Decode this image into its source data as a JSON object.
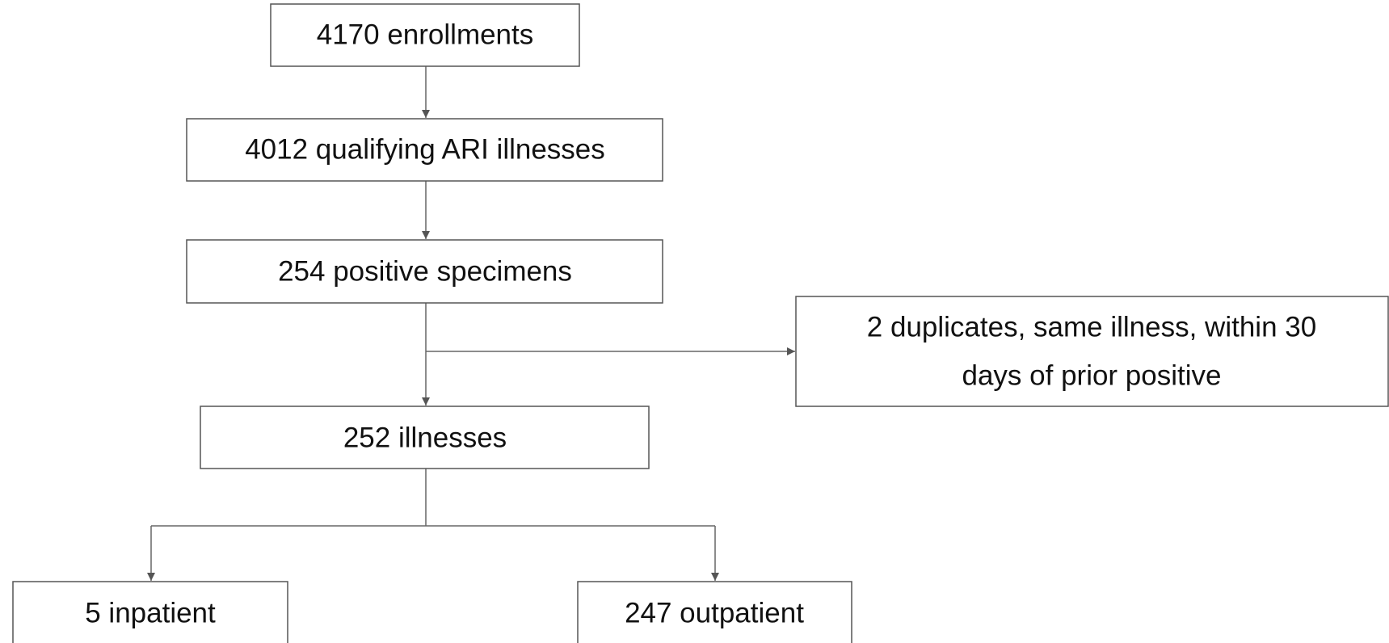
{
  "nodes": [
    {
      "label": "4170 enrollments"
    },
    {
      "label": "4012 qualifying ARI illnesses"
    },
    {
      "label": "254 positive specimens"
    },
    {
      "lines": [
        "2 duplicates, same illness, within 30",
        "days of prior positive"
      ]
    },
    {
      "label": "252 illnesses"
    },
    {
      "label": "5 inpatient"
    },
    {
      "label": "247 outpatient"
    }
  ]
}
